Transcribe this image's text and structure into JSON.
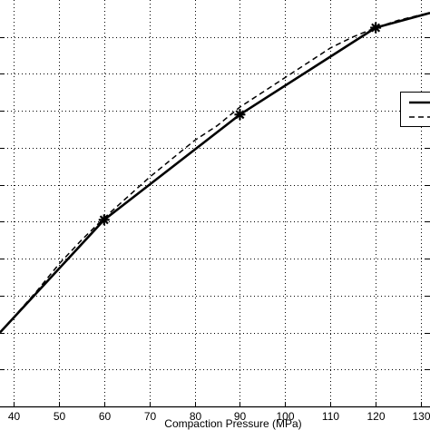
{
  "chart_data": {
    "type": "line",
    "title": "",
    "xlabel": "Compaction Pressure (MPa)",
    "ylabel": "",
    "xlim": [
      37,
      132
    ],
    "ylim": [
      0,
      11
    ],
    "xticks": [
      40,
      50,
      60,
      70,
      80,
      90,
      100,
      110,
      120,
      130
    ],
    "xtick_labels": [
      "40",
      "50",
      "60",
      "70",
      "80",
      "90",
      "100",
      "110",
      "120",
      "130"
    ],
    "ytick_count": 11,
    "ytick_labels_visible": false,
    "grid": true,
    "grid_style": "dotted",
    "legend_placement": "right",
    "legend_labels_visible": false,
    "series": [
      {
        "style": "solid",
        "marker": "asterisk",
        "x": [
          37,
          60,
          90,
          120,
          132
        ],
        "y": [
          2,
          5.05,
          7.9,
          10.25,
          10.65
        ],
        "markers_at": [
          60,
          90,
          120
        ]
      },
      {
        "style": "dashed",
        "marker": "none",
        "x": [
          37,
          45,
          50,
          55,
          60,
          65,
          70,
          75,
          80,
          85,
          90,
          95,
          100,
          105,
          110,
          115,
          120,
          125,
          130,
          132
        ],
        "y": [
          2,
          3.1,
          3.85,
          4.5,
          5.1,
          5.65,
          6.2,
          6.7,
          7.2,
          7.6,
          8.1,
          8.5,
          8.9,
          9.3,
          9.7,
          10.0,
          10.25,
          10.45,
          10.6,
          10.65
        ]
      }
    ]
  },
  "colors": {
    "line": "#000000",
    "grid": "#000000",
    "background": "#ffffff"
  }
}
